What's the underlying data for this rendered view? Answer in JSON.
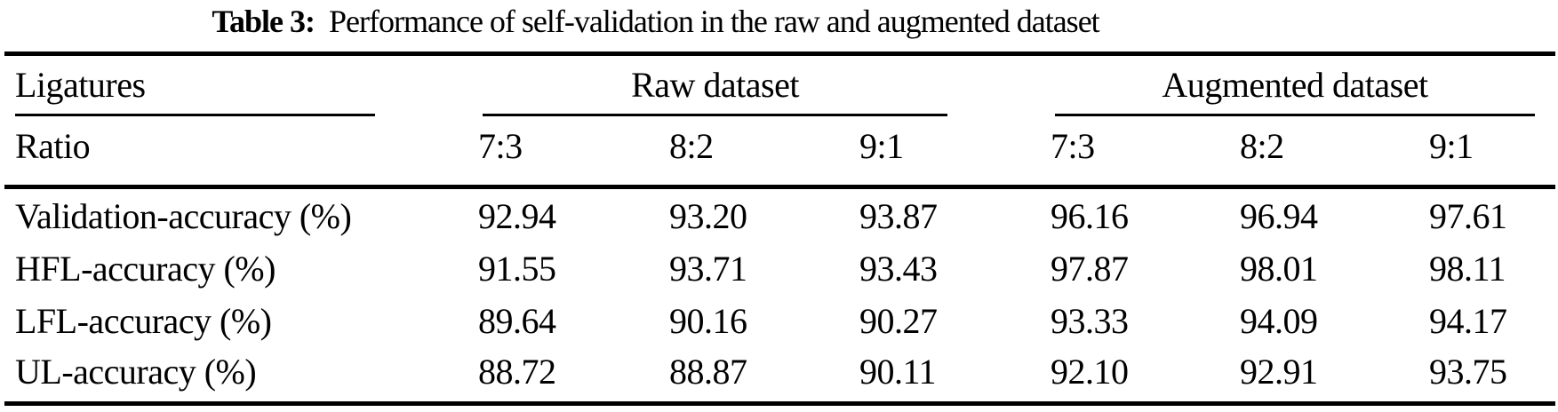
{
  "caption": {
    "label": "Table 3:",
    "text": "Performance of self-validation in the raw and augmented dataset"
  },
  "table": {
    "stub": {
      "row1": "Ligatures",
      "row2": "Ratio"
    },
    "groups": [
      {
        "label": "Raw dataset"
      },
      {
        "label": "Augmented dataset"
      }
    ],
    "ratios": [
      "7:3",
      "8:2",
      "9:1",
      "7:3",
      "8:2",
      "9:1"
    ],
    "rows": [
      {
        "label": "Validation-accuracy (%)",
        "values": [
          "92.94",
          "93.20",
          "93.87",
          "96.16",
          "96.94",
          "97.61"
        ]
      },
      {
        "label": "HFL-accuracy (%)",
        "values": [
          "91.55",
          "93.71",
          "93.43",
          "97.87",
          "98.01",
          "98.11"
        ]
      },
      {
        "label": "LFL-accuracy (%)",
        "values": [
          "89.64",
          "90.16",
          "90.27",
          "93.33",
          "94.09",
          "94.17"
        ]
      },
      {
        "label": "UL-accuracy (%)",
        "values": [
          "88.72",
          "88.87",
          "90.11",
          "92.10",
          "92.91",
          "93.75"
        ]
      }
    ]
  },
  "colors": {
    "background": "#ffffff",
    "text": "#000000",
    "rule": "#000000"
  }
}
